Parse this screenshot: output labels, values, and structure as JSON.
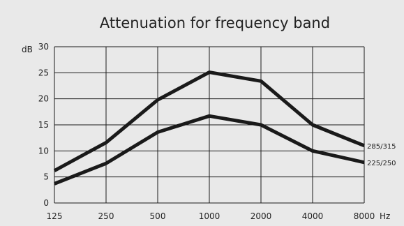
{
  "chart_data": {
    "type": "line",
    "title": "Attenuation for frequency band",
    "ylabel": "dB",
    "xunit": "Hz",
    "categories": [
      "125",
      "250",
      "500",
      "1000",
      "2000",
      "4000",
      "8000"
    ],
    "yticks": [
      0,
      5,
      10,
      15,
      20,
      25,
      30
    ],
    "ylim": [
      0,
      30
    ],
    "grid": true,
    "series": [
      {
        "name": "285/315",
        "values": [
          6.2,
          11.6,
          19.8,
          25.1,
          23.4,
          15.0,
          11.0
        ]
      },
      {
        "name": "225/250",
        "values": [
          3.7,
          7.6,
          13.6,
          16.7,
          15.0,
          10.0,
          7.8
        ]
      }
    ],
    "colors": {
      "background": "#e9e9e9",
      "grid": "#1a1a1a",
      "line": "#1a1a1a"
    }
  }
}
